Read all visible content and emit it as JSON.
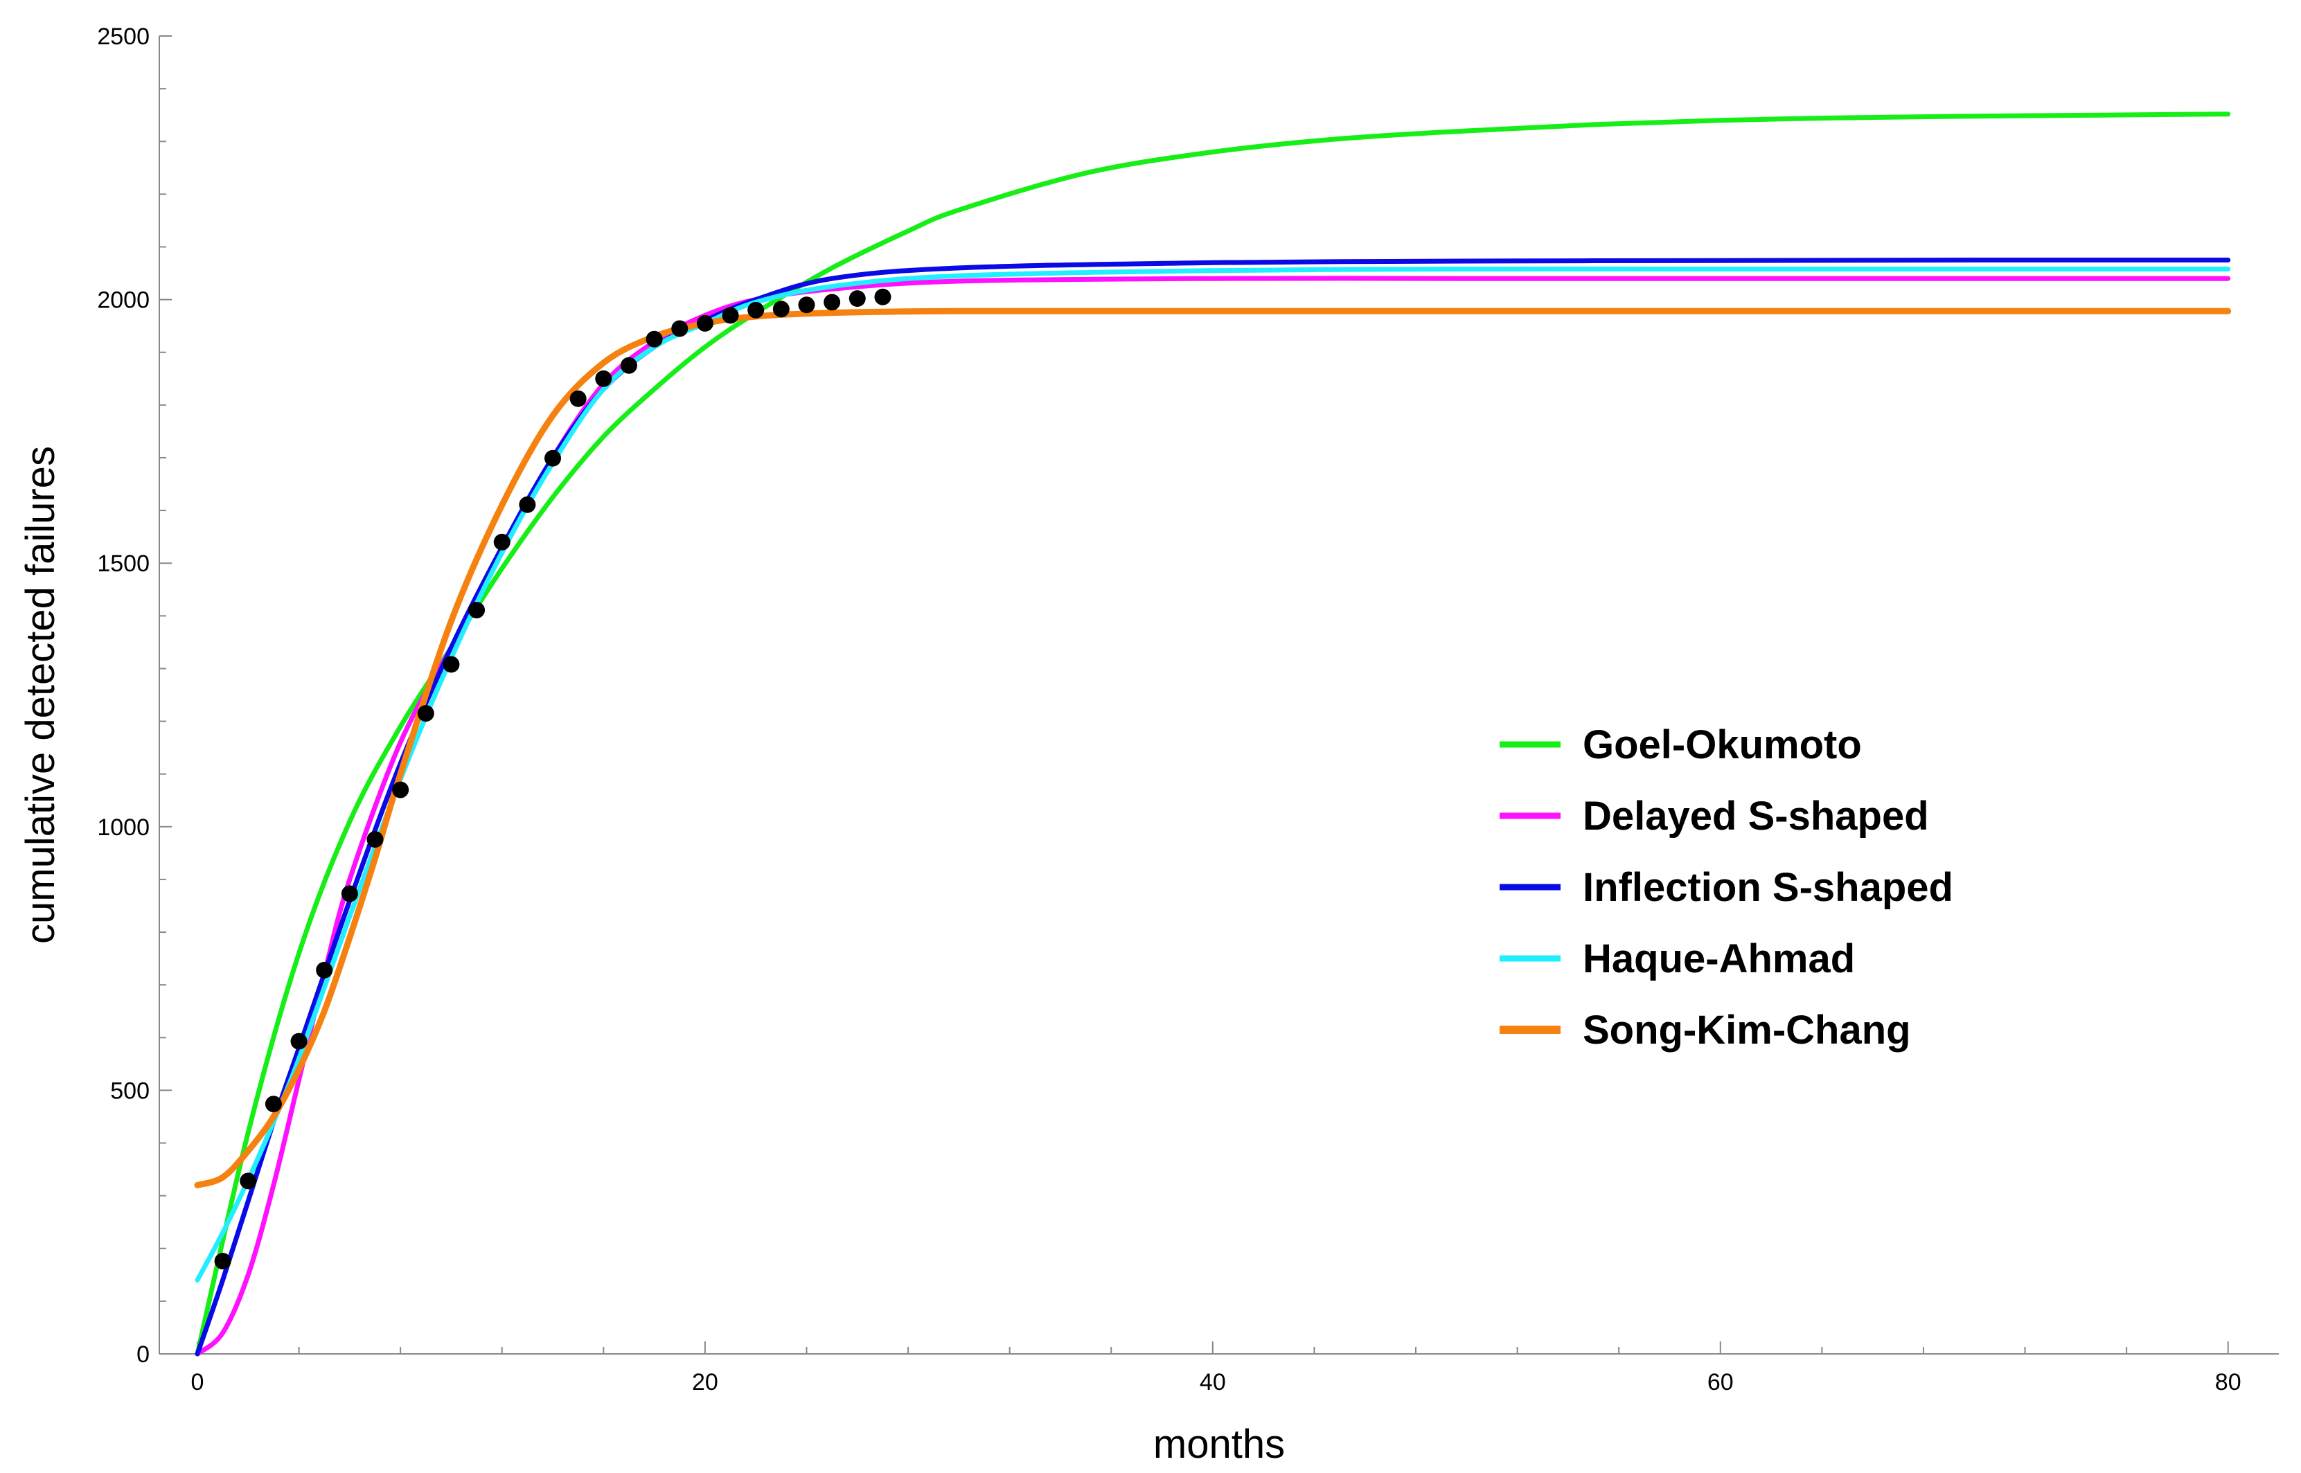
{
  "chart_data": {
    "type": "line",
    "title": "",
    "xlabel": "months",
    "ylabel": "cumulative detected failures",
    "xlim": [
      -1.5,
      82
    ],
    "ylim": [
      0,
      2500
    ],
    "x_ticks": [
      0,
      20,
      40,
      60,
      80
    ],
    "y_ticks": [
      0,
      500,
      1000,
      1500,
      2000,
      2500
    ],
    "x_tick_labels": [
      "0",
      "20",
      "40",
      "60",
      "80"
    ],
    "y_tick_labels": [
      "0",
      "500",
      "1000",
      "1500",
      "2000",
      "2500"
    ],
    "grid": false,
    "legend_position": "right",
    "series": [
      {
        "name": "Goel-Okumoto",
        "color": "#17ee17",
        "x": [
          0,
          2,
          4,
          6,
          8,
          10,
          12,
          14,
          16,
          18,
          20,
          22,
          25,
          28,
          30,
          35,
          40,
          45,
          50,
          55,
          60,
          65,
          70,
          75,
          80
        ],
        "y": [
          0,
          420,
          760,
          1010,
          1190,
          1340,
          1490,
          1625,
          1740,
          1830,
          1910,
          1975,
          2060,
          2130,
          2170,
          2240,
          2280,
          2305,
          2320,
          2332,
          2340,
          2345,
          2348,
          2350,
          2352
        ]
      },
      {
        "name": "Delayed S-shaped",
        "color": "#ff11ff",
        "x": [
          0,
          1,
          2,
          3,
          4,
          5,
          6,
          8,
          10,
          12,
          14,
          16,
          18,
          20,
          22,
          25,
          30,
          40,
          50,
          60,
          70,
          80
        ],
        "y": [
          0,
          40,
          150,
          320,
          520,
          720,
          900,
          1160,
          1340,
          1520,
          1700,
          1840,
          1920,
          1970,
          2000,
          2020,
          2035,
          2040,
          2040,
          2040,
          2040,
          2040
        ]
      },
      {
        "name": "Inflection S-shaped",
        "color": "#0a0ae6",
        "x": [
          0,
          1,
          2,
          3,
          4,
          6,
          8,
          10,
          12,
          14,
          16,
          18,
          20,
          22,
          25,
          30,
          40,
          50,
          60,
          70,
          80
        ],
        "y": [
          0,
          140,
          290,
          440,
          580,
          860,
          1120,
          1340,
          1530,
          1700,
          1830,
          1910,
          1960,
          2000,
          2040,
          2060,
          2070,
          2073,
          2074,
          2075,
          2075
        ]
      },
      {
        "name": "Haque-Ahmad",
        "color": "#22eeff",
        "x": [
          0,
          1,
          2,
          3,
          4,
          6,
          8,
          10,
          12,
          14,
          16,
          18,
          20,
          22,
          25,
          30,
          40,
          50,
          60,
          70,
          80
        ],
        "y": [
          140,
          230,
          330,
          440,
          560,
          830,
          1090,
          1320,
          1520,
          1690,
          1830,
          1910,
          1955,
          1995,
          2025,
          2045,
          2055,
          2058,
          2058,
          2058,
          2058
        ]
      },
      {
        "name": "Song-Kim-Chang",
        "color": "#f58210",
        "x": [
          0,
          1,
          2,
          3,
          4,
          5,
          6,
          7,
          8,
          10,
          12,
          14,
          16,
          18,
          20,
          22,
          25,
          30,
          40,
          50,
          60,
          70,
          80
        ],
        "y": [
          320,
          335,
          385,
          450,
          540,
          650,
          790,
          940,
          1100,
          1390,
          1610,
          1780,
          1880,
          1930,
          1955,
          1968,
          1975,
          1978,
          1978,
          1978,
          1978,
          1978,
          1978
        ]
      }
    ],
    "observed": {
      "color": "#000000",
      "x": [
        1,
        2,
        3,
        4,
        5,
        6,
        7,
        8,
        9,
        10,
        11,
        12,
        13,
        14,
        15,
        16,
        17,
        18,
        19,
        20,
        21,
        22,
        23,
        24,
        25,
        26,
        27
      ],
      "y": [
        176,
        328,
        474,
        593,
        728,
        873,
        976,
        1070,
        1215,
        1308,
        1411,
        1540,
        1611,
        1699,
        1812,
        1850,
        1875,
        1925,
        1945,
        1955,
        1970,
        1980,
        1982,
        1990,
        1995,
        2002,
        2005
      ]
    }
  }
}
